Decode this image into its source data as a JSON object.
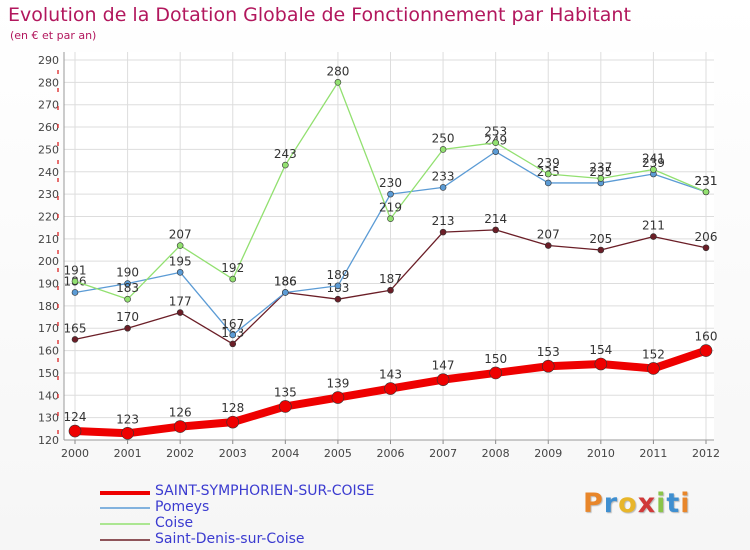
{
  "title": "Evolution de la Dotation Globale de Fonctionnement par Habitant",
  "subtitle": "(en € et par an)",
  "logo": {
    "letters": [
      "P",
      "r",
      "o",
      "x",
      "i",
      "t",
      "i"
    ],
    "colors": [
      "#e8862a",
      "#3f8fd0",
      "#e8b62a",
      "#d03a3a",
      "#8bc44a",
      "#3f8fd0",
      "#e8862a"
    ]
  },
  "chart_data": {
    "type": "line",
    "x": [
      2000,
      2001,
      2002,
      2003,
      2004,
      2005,
      2006,
      2007,
      2008,
      2009,
      2010,
      2011,
      2012
    ],
    "ylim": [
      120,
      290
    ],
    "yticks": [
      120,
      130,
      140,
      150,
      160,
      170,
      180,
      190,
      200,
      210,
      220,
      230,
      240,
      250,
      260,
      270,
      280,
      290
    ],
    "grid": true,
    "legend": "bottom-left",
    "series": [
      {
        "name": "Saint-Denis-sur-Coise",
        "color": "#6b1e27",
        "line_width": 1.3,
        "marker_r": 3,
        "values": [
          165,
          170,
          177,
          163,
          186,
          183,
          187,
          213,
          214,
          207,
          205,
          211,
          206
        ]
      },
      {
        "name": "Pomeys",
        "color": "#5b9bd5",
        "line_width": 1.3,
        "marker_r": 3,
        "values": [
          186,
          190,
          195,
          167,
          186,
          189,
          230,
          233,
          249,
          235,
          235,
          239,
          231
        ]
      },
      {
        "name": "Coise",
        "color": "#92e070",
        "line_width": 1.3,
        "marker_r": 3,
        "values": [
          191,
          183,
          207,
          192,
          243,
          280,
          219,
          250,
          253,
          239,
          237,
          241,
          231
        ]
      },
      {
        "name": "SAINT-SYMPHORIEN-SUR-COISE",
        "color": "#ee0000",
        "line_width": 8,
        "marker_r": 6,
        "values": [
          124,
          123,
          126,
          128,
          135,
          139,
          143,
          147,
          150,
          153,
          154,
          152,
          160
        ]
      }
    ],
    "legend_order": [
      "SAINT-SYMPHORIEN-SUR-COISE",
      "Pomeys",
      "Coise",
      "Saint-Denis-sur-Coise"
    ]
  }
}
